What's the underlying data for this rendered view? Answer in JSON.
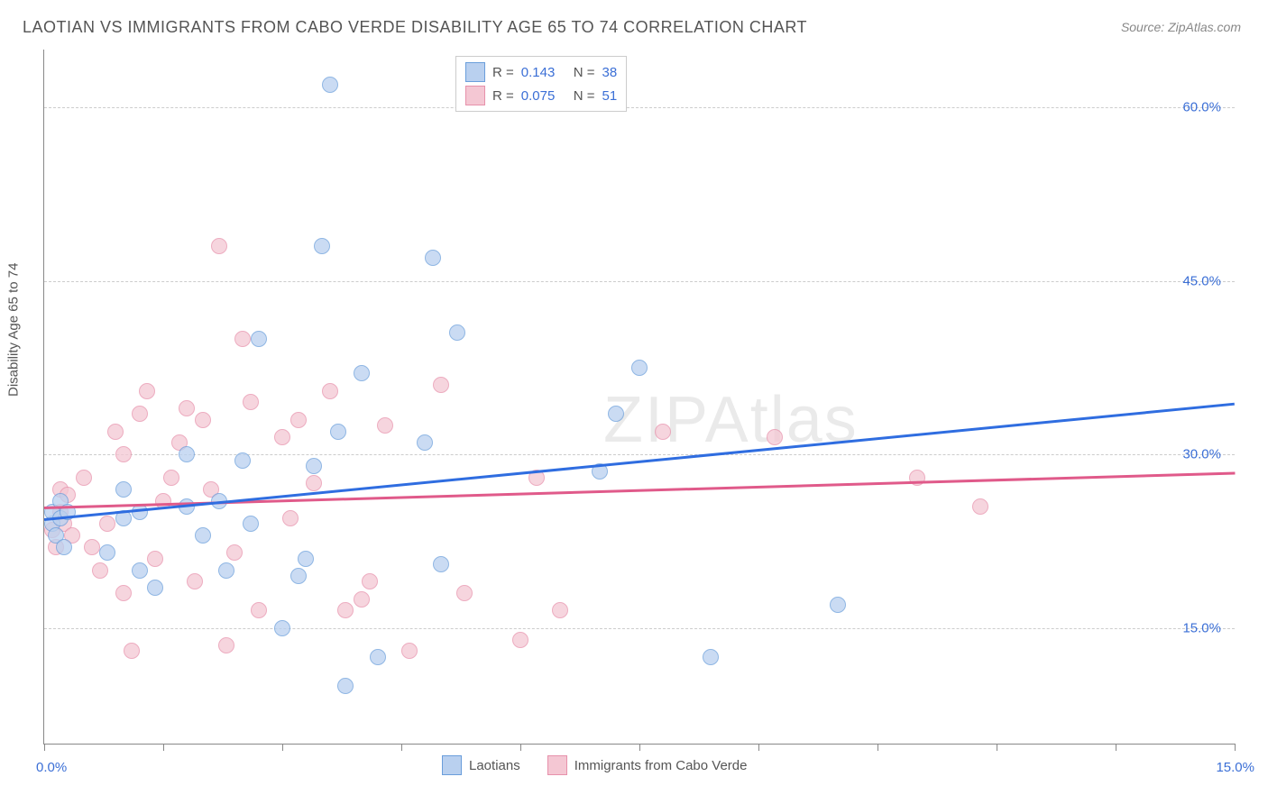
{
  "title": "LAOTIAN VS IMMIGRANTS FROM CABO VERDE DISABILITY AGE 65 TO 74 CORRELATION CHART",
  "source": "Source: ZipAtlas.com",
  "watermark": "ZIPAtlas",
  "y_axis_label": "Disability Age 65 to 74",
  "chart": {
    "type": "scatter",
    "background_color": "#ffffff",
    "grid_color": "#cccccc",
    "axis_color": "#888888",
    "xlim": [
      0,
      15
    ],
    "ylim": [
      5,
      65
    ],
    "x_ticks": [
      0,
      1.5,
      3,
      4.5,
      6,
      7.5,
      9,
      10.5,
      12,
      13.5,
      15
    ],
    "x_tick_labels": {
      "min": "0.0%",
      "max": "15.0%"
    },
    "y_grid": [
      15,
      30,
      45,
      60
    ],
    "y_tick_labels": [
      "15.0%",
      "30.0%",
      "45.0%",
      "60.0%"
    ],
    "title_fontsize": 18,
    "label_fontsize": 15,
    "marker_radius": 8
  },
  "series": [
    {
      "name": "Laotians",
      "fill": "#b9d0ef",
      "stroke": "#6a9edb",
      "r": 0.143,
      "n": 38,
      "trend": {
        "x1": 0,
        "y1": 24.5,
        "x2": 15,
        "y2": 34.5,
        "color": "#2f6de0",
        "width": 2.5
      },
      "points": [
        [
          0.1,
          24
        ],
        [
          0.1,
          25
        ],
        [
          0.15,
          23
        ],
        [
          0.2,
          24.5
        ],
        [
          0.2,
          26
        ],
        [
          0.25,
          22
        ],
        [
          0.3,
          25
        ],
        [
          0.8,
          21.5
        ],
        [
          1.0,
          24.5
        ],
        [
          1.0,
          27
        ],
        [
          1.2,
          20
        ],
        [
          1.2,
          25
        ],
        [
          1.4,
          18.5
        ],
        [
          1.8,
          25.5
        ],
        [
          1.8,
          30
        ],
        [
          2.0,
          23
        ],
        [
          2.2,
          26
        ],
        [
          2.3,
          20
        ],
        [
          2.5,
          29.5
        ],
        [
          2.6,
          24
        ],
        [
          2.7,
          40
        ],
        [
          3.0,
          15
        ],
        [
          3.2,
          19.5
        ],
        [
          3.3,
          21
        ],
        [
          3.4,
          29
        ],
        [
          3.5,
          48
        ],
        [
          3.6,
          62
        ],
        [
          3.7,
          32
        ],
        [
          3.8,
          10
        ],
        [
          4.0,
          37
        ],
        [
          4.2,
          12.5
        ],
        [
          4.8,
          31
        ],
        [
          4.9,
          47
        ],
        [
          5.0,
          20.5
        ],
        [
          5.2,
          40.5
        ],
        [
          7.0,
          28.5
        ],
        [
          7.2,
          33.5
        ],
        [
          7.5,
          37.5
        ],
        [
          8.4,
          12.5
        ],
        [
          10.0,
          17
        ]
      ]
    },
    {
      "name": "Immigrants from Cabo Verde",
      "fill": "#f4c7d3",
      "stroke": "#e791ab",
      "r": 0.075,
      "n": 51,
      "trend": {
        "x1": 0,
        "y1": 25.5,
        "x2": 15,
        "y2": 28.5,
        "color": "#e05a8a",
        "width": 2.5
      },
      "points": [
        [
          0.1,
          23.5
        ],
        [
          0.15,
          22
        ],
        [
          0.2,
          25
        ],
        [
          0.2,
          27
        ],
        [
          0.25,
          24
        ],
        [
          0.3,
          26.5
        ],
        [
          0.35,
          23
        ],
        [
          0.5,
          28
        ],
        [
          0.6,
          22
        ],
        [
          0.7,
          20
        ],
        [
          0.8,
          24
        ],
        [
          0.9,
          32
        ],
        [
          1.0,
          18
        ],
        [
          1.0,
          30
        ],
        [
          1.1,
          13
        ],
        [
          1.2,
          33.5
        ],
        [
          1.3,
          35.5
        ],
        [
          1.4,
          21
        ],
        [
          1.5,
          26
        ],
        [
          1.6,
          28
        ],
        [
          1.7,
          31
        ],
        [
          1.8,
          34
        ],
        [
          1.9,
          19
        ],
        [
          2.0,
          33
        ],
        [
          2.1,
          27
        ],
        [
          2.2,
          48
        ],
        [
          2.3,
          13.5
        ],
        [
          2.4,
          21.5
        ],
        [
          2.5,
          40
        ],
        [
          2.6,
          34.5
        ],
        [
          2.7,
          16.5
        ],
        [
          3.0,
          31.5
        ],
        [
          3.1,
          24.5
        ],
        [
          3.2,
          33
        ],
        [
          3.4,
          27.5
        ],
        [
          3.6,
          35.5
        ],
        [
          3.8,
          16.5
        ],
        [
          4.0,
          17.5
        ],
        [
          4.1,
          19
        ],
        [
          4.3,
          32.5
        ],
        [
          4.6,
          13
        ],
        [
          5.0,
          36
        ],
        [
          5.3,
          18
        ],
        [
          6.0,
          14
        ],
        [
          6.2,
          28
        ],
        [
          6.5,
          16.5
        ],
        [
          7.8,
          32
        ],
        [
          9.2,
          31.5
        ],
        [
          11.0,
          28
        ],
        [
          11.8,
          25.5
        ]
      ]
    }
  ],
  "legend_top": {
    "r_label": "R =",
    "n_label": "N ="
  },
  "legend_bottom": [
    {
      "label": "Laotians",
      "fill": "#b9d0ef",
      "stroke": "#6a9edb"
    },
    {
      "label": "Immigrants from Cabo Verde",
      "fill": "#f4c7d3",
      "stroke": "#e791ab"
    }
  ]
}
